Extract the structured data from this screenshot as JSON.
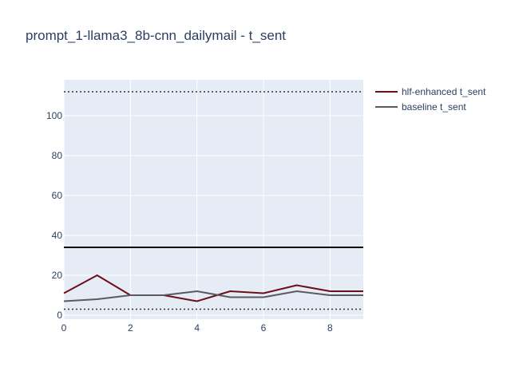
{
  "chart_data": {
    "type": "line",
    "title": "prompt_1-llama3_8b-cnn_dailymail - t_sent",
    "xlabel": "",
    "ylabel": "",
    "x": [
      0,
      1,
      2,
      3,
      4,
      5,
      6,
      7,
      8,
      9
    ],
    "xlim": [
      0,
      9
    ],
    "ylim": [
      -2,
      118
    ],
    "xticks": [
      0,
      2,
      4,
      6,
      8
    ],
    "yticks": [
      0,
      20,
      40,
      60,
      80,
      100
    ],
    "grid": true,
    "legend_position": "top-right",
    "series": [
      {
        "name": "hlf-enhanced t_sent",
        "color": "#6b0f1a",
        "values": [
          11,
          20,
          10,
          10,
          7,
          12,
          11,
          15,
          12,
          12
        ]
      },
      {
        "name": "baseline t_sent",
        "color": "#5a5a5f",
        "values": [
          7,
          8,
          10,
          10,
          12,
          9,
          9,
          12,
          10,
          10
        ]
      }
    ],
    "reference_lines": [
      {
        "y": 34,
        "style": "solid",
        "color": "#000000"
      },
      {
        "y": 112,
        "style": "dotted",
        "color": "#333333"
      },
      {
        "y": 3,
        "style": "dotted",
        "color": "#333333"
      }
    ],
    "plot_bgcolor": "#e5ecf6",
    "gridcolor": "#ffffff"
  }
}
